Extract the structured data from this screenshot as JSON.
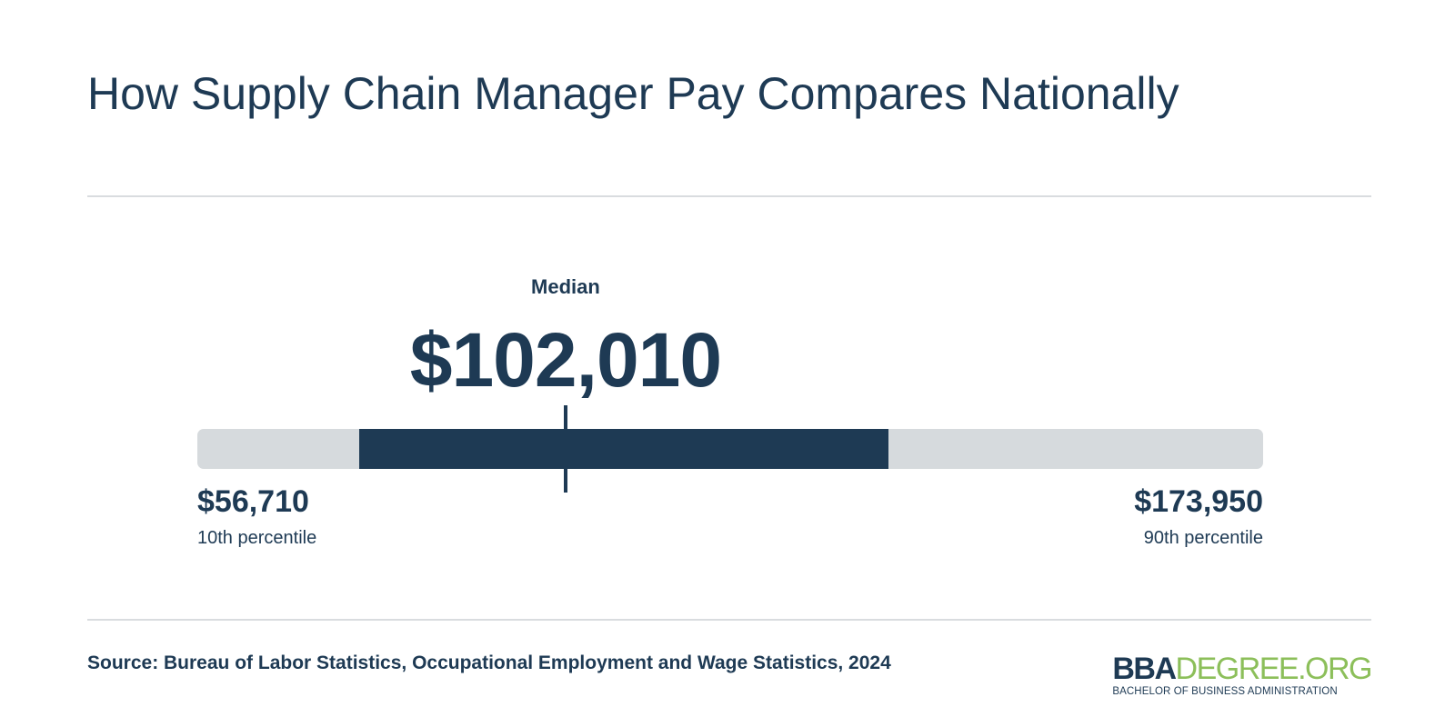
{
  "title": "How Supply Chain Manager Pay Compares Nationally",
  "chart_data": {
    "type": "range",
    "min": 45000,
    "max": 210000,
    "range_start": 70000,
    "range_end": 152000,
    "median": {
      "label": "Median",
      "value": 102010,
      "display": "$102,010"
    },
    "low": {
      "value": 56710,
      "display": "$56,710",
      "label": "10th percentile"
    },
    "high": {
      "value": 173950,
      "display": "$173,950",
      "label": "90th percentile"
    },
    "colors": {
      "track": "#d6dadd",
      "fill": "#1e3a54",
      "text": "#1e3a54"
    }
  },
  "source": "Source: Bureau of Labor Statistics, Occupational Employment and Wage Statistics, 2024",
  "logo": {
    "bold": "BBA",
    "light": "DEGREE.ORG",
    "tagline": "BACHELOR OF BUSINESS ADMINISTRATION",
    "accent_color": "#8cbf5a"
  }
}
